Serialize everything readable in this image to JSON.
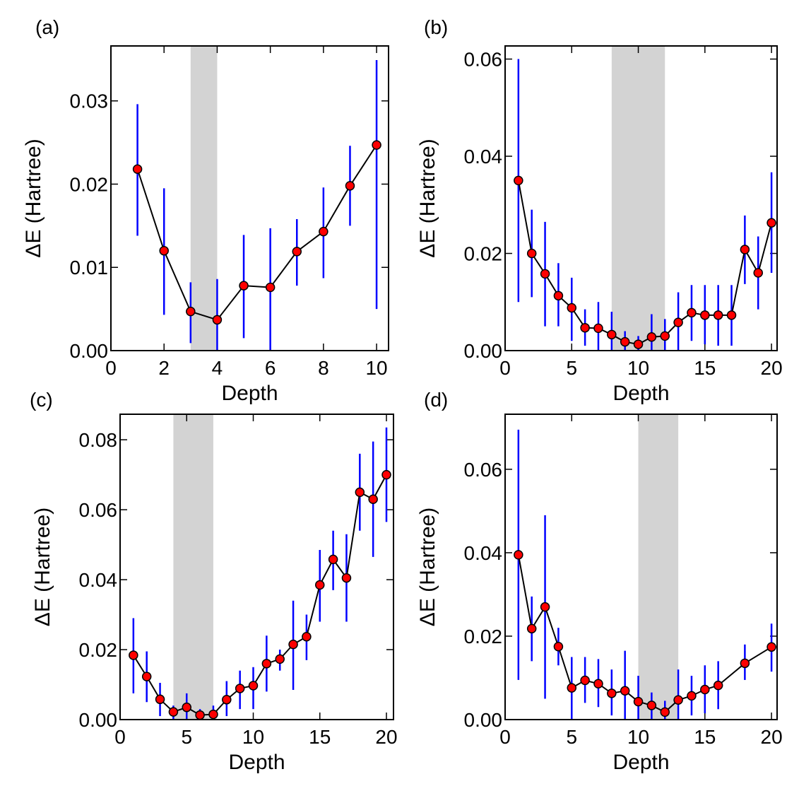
{
  "colors": {
    "marker_fill": "#ff0000",
    "marker_edge": "#000000",
    "errorbar": "#0000ff",
    "line": "#000000",
    "shade": "#d3d3d3"
  },
  "chart_data": [
    {
      "type": "line",
      "panel_label": "(a)",
      "xlabel": "Depth",
      "ylabel": "ΔE (Hartree)",
      "xlim": [
        0,
        10.45
      ],
      "ylim": [
        0,
        0.0366
      ],
      "xticks": [
        0,
        2,
        4,
        6,
        8,
        10
      ],
      "yticks": [
        0,
        0.01,
        0.02,
        0.03
      ],
      "shaded_x": [
        3,
        4
      ],
      "grid": false,
      "x": [
        1,
        2,
        3,
        4,
        5,
        6,
        7,
        8,
        9,
        10
      ],
      "y": [
        0.0218,
        0.012,
        0.0047,
        0.0037,
        0.0078,
        0.0076,
        0.0119,
        0.0143,
        0.0198,
        0.0247
      ],
      "err_upper": [
        0.0296,
        0.0195,
        0.0082,
        0.0086,
        0.0139,
        0.0147,
        0.0158,
        0.0196,
        0.0246,
        0.0349
      ],
      "err_lower": [
        0.0138,
        0.0043,
        0.0009,
        0.0,
        0.0015,
        0.0,
        0.0078,
        0.0087,
        0.015,
        0.005
      ]
    },
    {
      "type": "line",
      "panel_label": "(b)",
      "xlabel": "Depth",
      "ylabel": "ΔE (Hartree)",
      "xlim": [
        0,
        20.42
      ],
      "ylim": [
        0,
        0.0627
      ],
      "xticks": [
        0,
        5,
        10,
        15,
        20
      ],
      "yticks": [
        0,
        0.02,
        0.04,
        0.06
      ],
      "shaded_x": [
        8,
        12
      ],
      "grid": false,
      "x": [
        1,
        2,
        3,
        4,
        5,
        6,
        7,
        8,
        9,
        10,
        11,
        12,
        13,
        14,
        15,
        16,
        17,
        18,
        19,
        20
      ],
      "y": [
        0.035,
        0.02,
        0.0158,
        0.0113,
        0.0088,
        0.0047,
        0.0046,
        0.0033,
        0.0018,
        0.0013,
        0.0028,
        0.003,
        0.0058,
        0.0078,
        0.0073,
        0.0073,
        0.0073,
        0.0208,
        0.016,
        0.0263
      ],
      "err_upper": [
        0.06,
        0.029,
        0.0265,
        0.018,
        0.015,
        0.0085,
        0.01,
        0.008,
        0.004,
        0.003,
        0.0075,
        0.0065,
        0.012,
        0.0135,
        0.0135,
        0.0135,
        0.0135,
        0.0278,
        0.0235,
        0.0367
      ],
      "err_lower": [
        0.01,
        0.011,
        0.005,
        0.005,
        0.002,
        0.001,
        0.0,
        0.0,
        0.0,
        0.0,
        0.0,
        0.0,
        0.0,
        0.002,
        0.0013,
        0.001,
        0.001,
        0.0137,
        0.0085,
        0.016
      ]
    },
    {
      "type": "line",
      "panel_label": "(c)",
      "xlabel": "Depth",
      "ylabel": "ΔE (Hartree)",
      "xlim": [
        0,
        20.53
      ],
      "ylim": [
        0,
        0.0873
      ],
      "xticks": [
        0,
        5,
        10,
        15,
        20
      ],
      "yticks": [
        0,
        0.02,
        0.04,
        0.06,
        0.08
      ],
      "shaded_x": [
        4,
        7
      ],
      "grid": false,
      "x": [
        1,
        2,
        3,
        4,
        5,
        6,
        7,
        8,
        9,
        10,
        11,
        12,
        13,
        14,
        15,
        16,
        17,
        18,
        19,
        20
      ],
      "y": [
        0.0184,
        0.0123,
        0.0058,
        0.0022,
        0.0035,
        0.0013,
        0.0015,
        0.0057,
        0.0089,
        0.0097,
        0.016,
        0.0173,
        0.0215,
        0.0237,
        0.0385,
        0.0458,
        0.0405,
        0.065,
        0.063,
        0.07
      ],
      "err_upper": [
        0.029,
        0.0195,
        0.0105,
        0.004,
        0.0075,
        0.003,
        0.004,
        0.011,
        0.014,
        0.015,
        0.024,
        0.02,
        0.034,
        0.03,
        0.0485,
        0.054,
        0.053,
        0.076,
        0.0795,
        0.0835
      ],
      "err_lower": [
        0.0075,
        0.005,
        0.001,
        0.0,
        0.0,
        0.0,
        0.0,
        0.001,
        0.003,
        0.003,
        0.008,
        0.014,
        0.0085,
        0.017,
        0.028,
        0.037,
        0.028,
        0.054,
        0.0465,
        0.0565
      ]
    },
    {
      "type": "line",
      "panel_label": "(d)",
      "xlabel": "Depth",
      "ylabel": "ΔE (Hartree)",
      "xlim": [
        0,
        20.42
      ],
      "ylim": [
        0,
        0.0732
      ],
      "xticks": [
        0,
        5,
        10,
        15,
        20
      ],
      "yticks": [
        0,
        0.02,
        0.04,
        0.06
      ],
      "shaded_x": [
        10,
        13
      ],
      "grid": false,
      "x": [
        1,
        2,
        3,
        4,
        5,
        6,
        7,
        8,
        9,
        10,
        11,
        12,
        13,
        14,
        15,
        16,
        18,
        20
      ],
      "y": [
        0.0395,
        0.0218,
        0.027,
        0.0175,
        0.0076,
        0.0094,
        0.0086,
        0.0063,
        0.0069,
        0.0043,
        0.0034,
        0.0018,
        0.0047,
        0.0057,
        0.0072,
        0.0082,
        0.0135,
        0.0174
      ],
      "err_upper": [
        0.0695,
        0.0295,
        0.049,
        0.022,
        0.015,
        0.015,
        0.0145,
        0.012,
        0.0165,
        0.0105,
        0.0065,
        0.0045,
        0.012,
        0.0105,
        0.013,
        0.014,
        0.018,
        0.023
      ],
      "err_lower": [
        0.0095,
        0.014,
        0.005,
        0.013,
        0.0,
        0.004,
        0.003,
        0.001,
        0.0,
        0.0,
        0.0,
        0.0,
        0.0,
        0.001,
        0.0015,
        0.0025,
        0.0095,
        0.0115
      ]
    }
  ]
}
